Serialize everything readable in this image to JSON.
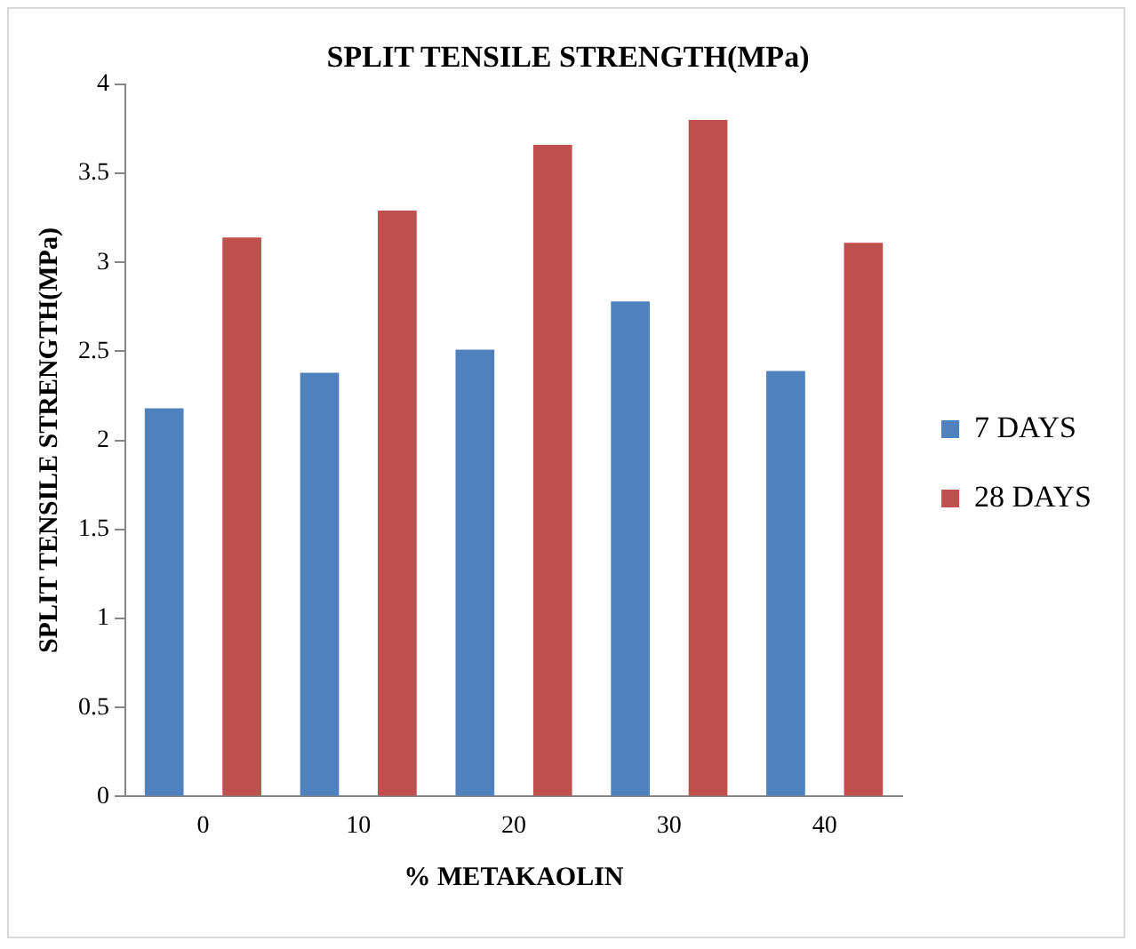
{
  "chart_data": {
    "type": "bar",
    "title": "SPLIT TENSILE STRENGTH(MPa)",
    "xlabel": "% METAKAOLIN",
    "ylabel": "SPLIT TENSILE STRENGTH(MPa)",
    "categories": [
      "0",
      "10",
      "20",
      "30",
      "40"
    ],
    "series": [
      {
        "name": "7 DAYS",
        "color": "#4f81bd",
        "values": [
          2.18,
          2.38,
          2.51,
          2.78,
          2.39
        ]
      },
      {
        "name": "28 DAYS",
        "color": "#c0504d",
        "values": [
          3.14,
          3.29,
          3.66,
          3.8,
          3.11
        ]
      }
    ],
    "ylim": [
      0,
      4
    ],
    "yticks": [
      0,
      0.5,
      1,
      1.5,
      2,
      2.5,
      3,
      3.5,
      4
    ],
    "grid": false,
    "legend": "right"
  }
}
